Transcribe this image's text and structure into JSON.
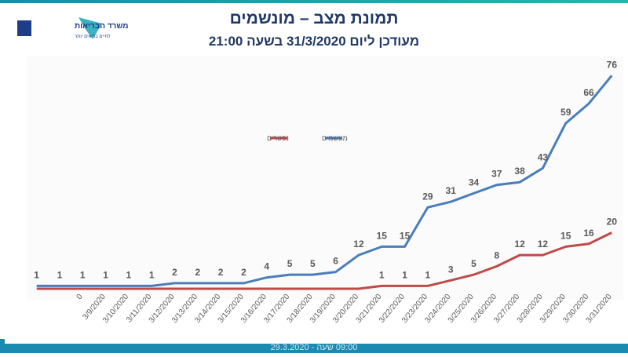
{
  "header": {
    "title": "תמונת מצב – מונשמים",
    "subtitle": "מעודכן ליום 31/3/2020 בשעה 21:00",
    "logo_name": "משרד הבריאות",
    "logo_tagline": "לחיים בריאים יותר"
  },
  "footer": {
    "text": "09:00 שעה - 29.3.2020"
  },
  "chart_data": {
    "type": "line",
    "categories": [
      null,
      null,
      "0",
      "3/9/2020",
      "3/10/2020",
      "3/11/2020",
      "3/12/2020",
      "3/13/2020",
      "3/14/2020",
      "3/15/2020",
      "3/16/2020",
      "3/17/2020",
      "3/18/2020",
      "3/19/2020",
      "3/20/2020",
      "3/21/2020",
      "3/22/2020",
      "3/23/2020",
      "3/24/2020",
      "3/25/2020",
      "3/26/2020",
      "3/27/2020",
      "3/28/2020",
      "3/29/2020",
      "3/30/2020",
      "3/31/2020"
    ],
    "series": [
      {
        "name": "מונשמים",
        "color": "#4a7ebb",
        "values": [
          1,
          1,
          1,
          1,
          1,
          1,
          2,
          2,
          2,
          2,
          4,
          5,
          5,
          6,
          12,
          15,
          15,
          29,
          31,
          34,
          37,
          38,
          43,
          59,
          66,
          76
        ]
      },
      {
        "name": "נפטרים",
        "color": "#be4b48",
        "values": [
          0,
          0,
          0,
          0,
          0,
          0,
          0,
          0,
          0,
          0,
          0,
          0,
          0,
          0,
          0,
          1,
          1,
          1,
          3,
          5,
          8,
          12,
          12,
          15,
          16,
          20
        ],
        "value_labels": [
          null,
          null,
          null,
          null,
          null,
          null,
          null,
          null,
          null,
          null,
          null,
          null,
          null,
          null,
          null,
          "1",
          "1",
          "1",
          "3",
          "5",
          "8",
          "12",
          "12",
          "15",
          "16",
          "20"
        ]
      }
    ],
    "ylim": [
      0,
      80
    ],
    "legend": "top"
  }
}
